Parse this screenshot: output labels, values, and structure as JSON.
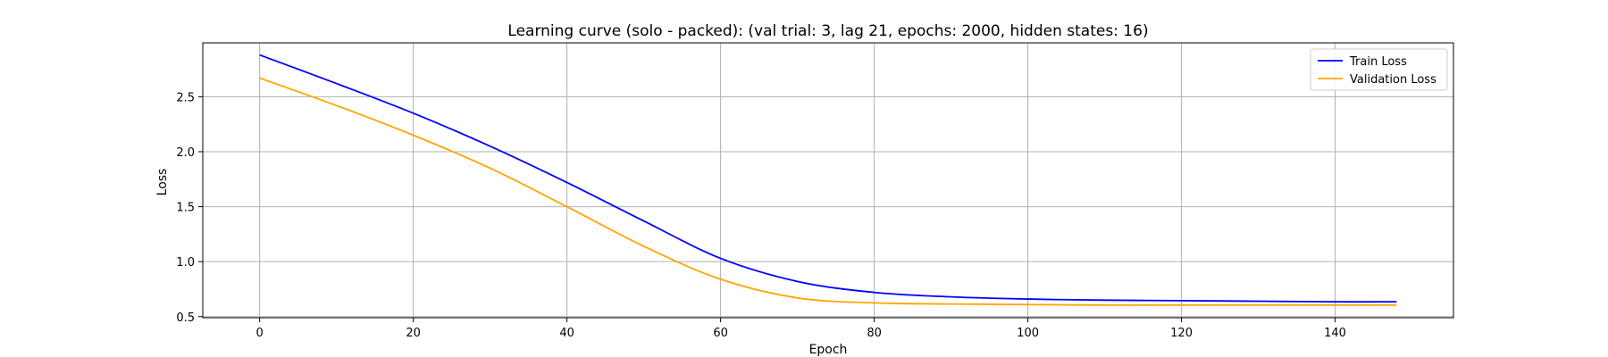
{
  "chart_data": {
    "type": "line",
    "title": "Learning curve (solo - packed): (val trial: 3, lag 21, epochs: 2000, hidden states: 16)",
    "xlabel": "Epoch",
    "ylabel": "Loss",
    "xlim": [
      -7.4,
      155.4
    ],
    "ylim": [
      0.49,
      2.99
    ],
    "xticks": [
      0,
      20,
      40,
      60,
      80,
      100,
      120,
      140
    ],
    "yticks": [
      0.5,
      1.0,
      1.5,
      2.0,
      2.5
    ],
    "xtick_labels": [
      "0",
      "20",
      "40",
      "60",
      "80",
      "100",
      "120",
      "140"
    ],
    "ytick_labels": [
      "0.5",
      "1.0",
      "1.5",
      "2.0",
      "2.5"
    ],
    "grid": true,
    "legend_position": "top-right",
    "x": [
      0,
      10,
      20,
      30,
      40,
      50,
      60,
      70,
      80,
      90,
      100,
      110,
      120,
      130,
      140,
      148
    ],
    "series": [
      {
        "name": "Train Loss",
        "color": "#0000ff",
        "values": [
          2.88,
          2.62,
          2.35,
          2.05,
          1.72,
          1.37,
          1.03,
          0.82,
          0.72,
          0.68,
          0.66,
          0.65,
          0.645,
          0.64,
          0.635,
          0.635
        ]
      },
      {
        "name": "Validation Loss",
        "color": "#ffa500",
        "values": [
          2.67,
          2.42,
          2.15,
          1.85,
          1.5,
          1.14,
          0.84,
          0.67,
          0.625,
          0.615,
          0.61,
          0.605,
          0.605,
          0.605,
          0.605,
          0.605
        ]
      }
    ]
  }
}
